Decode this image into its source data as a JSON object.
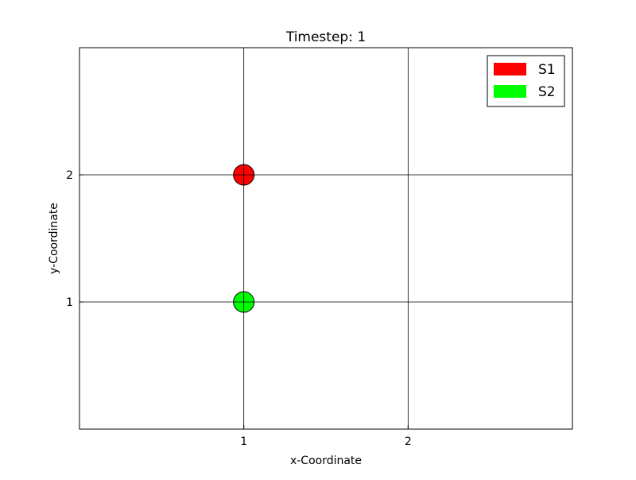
{
  "chart_data": {
    "type": "scatter",
    "title": "Timestep: 1",
    "xlabel": "x-Coordinate",
    "ylabel": "y-Coordinate",
    "xlim": [
      0,
      3
    ],
    "ylim": [
      0,
      3
    ],
    "xticks": [
      1,
      2
    ],
    "yticks": [
      1,
      2
    ],
    "grid": true,
    "legend_position": "top-right",
    "series": [
      {
        "name": "S1",
        "color": "#ff0000",
        "points": [
          {
            "x": 1,
            "y": 2
          }
        ]
      },
      {
        "name": "S2",
        "color": "#00ff00",
        "points": [
          {
            "x": 1,
            "y": 1
          }
        ]
      }
    ]
  }
}
